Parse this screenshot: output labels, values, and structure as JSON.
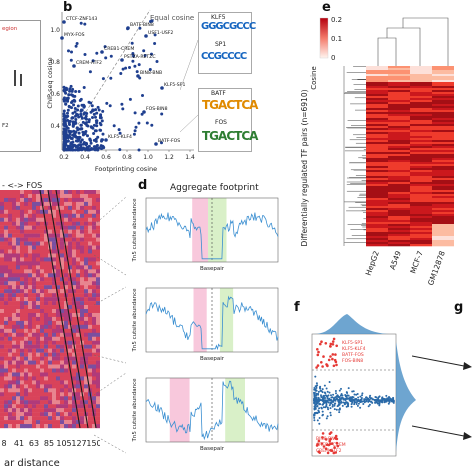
{
  "panels": {
    "b": {
      "label": "b",
      "xlabel": "Footprinting cosine",
      "ylabel": "ChIP-seq cosine",
      "diag_label": "Equal cosine",
      "xticks": [
        "0.2",
        "0.4",
        "0.6",
        "0.8",
        "1.0",
        "1.2",
        "1.4"
      ],
      "yticks": [
        "0.4",
        "0.6",
        "0.8",
        "1.0"
      ],
      "annotations": [
        "CTCF-ZNF143",
        "MYX-FOS",
        "CREB1-CREM",
        "BATF-BIN8",
        "USF1-USF2",
        "PSTZA-RETZC",
        "CREM-ATF2",
        "BIN8-BNB",
        "KLF5-SP1",
        "FOS-BIN8",
        "KLF5-KLF4",
        "BATF-FOS"
      ],
      "motif_boxes": [
        {
          "top": "KLF5",
          "bottom": "SP1",
          "seq_top": "GGGCGCCC",
          "seq_bottom": "CCGCCCC"
        },
        {
          "top": "BATF",
          "bottom": "FOS",
          "seq_top": "TGACTCA",
          "seq_bottom": "TGACTCA"
        }
      ]
    },
    "d": {
      "label": "d",
      "title": "Aggregate footprint",
      "ylabels": [
        "Tn5 cutsite abundance",
        "Tn5 cutsite abundance",
        "Tn5 cutsite abundance"
      ],
      "xlabels": [
        "Basepair",
        "Basepair",
        "Basepair"
      ]
    },
    "e": {
      "label": "e",
      "colorbar_title": "Cosine",
      "colorbar_max": "0.2",
      "colorbar_mid": "0.1",
      "colorbar_min": "0",
      "ylabel": "Differentially regulated TF pairs (n=6910)",
      "columns": [
        "HepG2",
        "A549",
        "MCF-7",
        "GM12878"
      ]
    },
    "f": {
      "label": "f"
    },
    "g": {
      "label": "g"
    },
    "c_partial": {
      "header": "- <-> FOS",
      "xticks": [
        "8",
        "41",
        "63",
        "85",
        "105",
        "127",
        "150"
      ],
      "xlabel": "ar distance"
    }
  }
}
